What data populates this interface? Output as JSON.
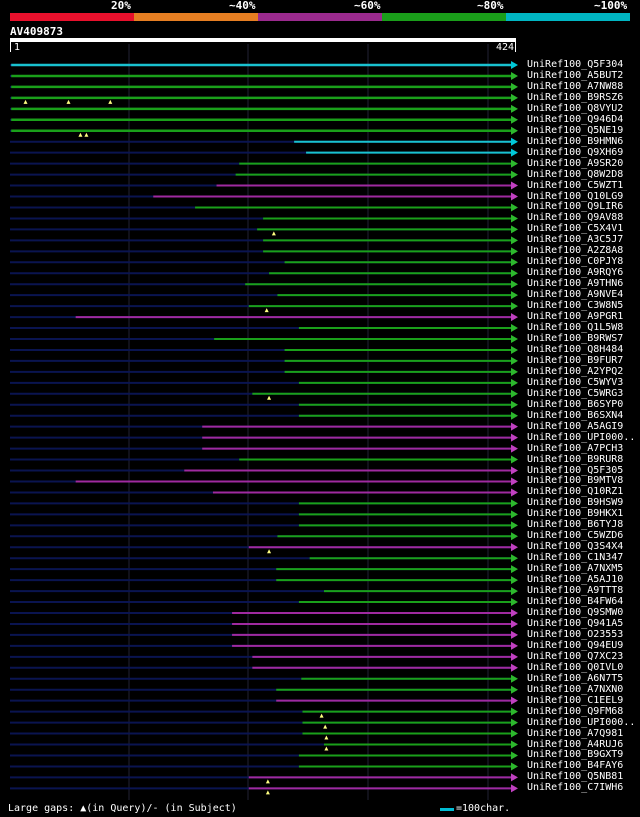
{
  "legend": {
    "labels": [
      "20%",
      "~40%",
      "~60%",
      "~80%",
      "~100%"
    ],
    "colors": [
      "#e8102c",
      "#e67e22",
      "#9b2a8e",
      "#1a9e1a",
      "#00b5c2"
    ]
  },
  "query": {
    "id": "AV409873",
    "start": "1",
    "end": "424"
  },
  "colors": {
    "gap": "#0a1450",
    "grid": "#222233",
    "arrow_green": "#2db82d",
    "arrow_cyan": "#00c8d8",
    "arrow_purple": "#c040c0",
    "marker": "#ffff80"
  },
  "hits": [
    {
      "label": "UniRef100_Q5F304",
      "color": "cyan",
      "start": 2,
      "bold": true,
      "markers": []
    },
    {
      "label": "UniRef100_A5BUT2",
      "color": "green",
      "start": 2,
      "bold": true,
      "markers": []
    },
    {
      "label": "UniRef100_A7NW88",
      "color": "green",
      "start": 2,
      "bold": true,
      "markers": []
    },
    {
      "label": "UniRef100_B9RSZ6",
      "color": "green",
      "start": 2,
      "bold": true,
      "markers": [
        14,
        50,
        85
      ]
    },
    {
      "label": "UniRef100_Q8VYU2",
      "color": "green",
      "start": 2,
      "bold": true,
      "markers": []
    },
    {
      "label": "UniRef100_Q946D4",
      "color": "green",
      "start": 2,
      "bold": true,
      "markers": []
    },
    {
      "label": "UniRef100_Q5NE19",
      "color": "green",
      "start": 2,
      "bold": true,
      "markers": [
        60,
        65
      ]
    },
    {
      "label": "UniRef100_B9HMN6",
      "color": "cyan",
      "start": 239,
      "bold": false,
      "markers": []
    },
    {
      "label": "UniRef100_Q9XH69",
      "color": "cyan",
      "start": 249,
      "bold": false,
      "markers": []
    },
    {
      "label": "UniRef100_A9SR20",
      "color": "green",
      "start": 193,
      "bold": false,
      "markers": []
    },
    {
      "label": "UniRef100_Q8W2D8",
      "color": "green",
      "start": 190,
      "bold": false,
      "markers": []
    },
    {
      "label": "UniRef100_C5WZT1",
      "color": "purple",
      "start": 174,
      "bold": false,
      "markers": []
    },
    {
      "label": "UniRef100_Q10LG9",
      "color": "purple",
      "start": 121,
      "bold": false,
      "markers": []
    },
    {
      "label": "UniRef100_Q9LIR6",
      "color": "green",
      "start": 156,
      "bold": false,
      "markers": []
    },
    {
      "label": "UniRef100_Q9AV88",
      "color": "green",
      "start": 213,
      "bold": false,
      "markers": []
    },
    {
      "label": "UniRef100_C5X4V1",
      "color": "green",
      "start": 208,
      "bold": false,
      "markers": [
        222
      ]
    },
    {
      "label": "UniRef100_A3C5J7",
      "color": "green",
      "start": 213,
      "bold": false,
      "markers": []
    },
    {
      "label": "UniRef100_A2Z8A8",
      "color": "green",
      "start": 213,
      "bold": false,
      "markers": []
    },
    {
      "label": "UniRef100_C0PJY8",
      "color": "green",
      "start": 231,
      "bold": false,
      "markers": []
    },
    {
      "label": "UniRef100_A9RQY6",
      "color": "green",
      "start": 218,
      "bold": false,
      "markers": []
    },
    {
      "label": "UniRef100_A9THN6",
      "color": "green",
      "start": 198,
      "bold": false,
      "markers": []
    },
    {
      "label": "UniRef100_A9NVE4",
      "color": "green",
      "start": 225,
      "bold": false,
      "markers": []
    },
    {
      "label": "UniRef100_C3W8N5",
      "color": "green",
      "start": 201,
      "bold": false,
      "markers": [
        216
      ]
    },
    {
      "label": "UniRef100_A9PGR1",
      "color": "purple",
      "start": 56,
      "bold": false,
      "markers": []
    },
    {
      "label": "UniRef100_Q1L5W8",
      "color": "green",
      "start": 243,
      "bold": false,
      "markers": []
    },
    {
      "label": "UniRef100_B9RWS7",
      "color": "green",
      "start": 172,
      "bold": false,
      "markers": []
    },
    {
      "label": "UniRef100_Q8H484",
      "color": "green",
      "start": 231,
      "bold": false,
      "markers": []
    },
    {
      "label": "UniRef100_B9FUR7",
      "color": "green",
      "start": 231,
      "bold": false,
      "markers": []
    },
    {
      "label": "UniRef100_A2YPQ2",
      "color": "green",
      "start": 231,
      "bold": false,
      "markers": []
    },
    {
      "label": "UniRef100_C5WYV3",
      "color": "green",
      "start": 243,
      "bold": false,
      "markers": []
    },
    {
      "label": "UniRef100_C5WRG3",
      "color": "green",
      "start": 204,
      "bold": false,
      "markers": [
        218
      ]
    },
    {
      "label": "UniRef100_B6SYP0",
      "color": "green",
      "start": 243,
      "bold": false,
      "markers": []
    },
    {
      "label": "UniRef100_B6SXN4",
      "color": "green",
      "start": 243,
      "bold": false,
      "markers": []
    },
    {
      "label": "UniRef100_A5AGI9",
      "color": "purple",
      "start": 162,
      "bold": false,
      "markers": []
    },
    {
      "label": "UniRef100_UPI000..",
      "color": "purple",
      "start": 162,
      "bold": false,
      "markers": []
    },
    {
      "label": "UniRef100_A7PCH3",
      "color": "purple",
      "start": 162,
      "bold": false,
      "markers": []
    },
    {
      "label": "UniRef100_B9RUR8",
      "color": "green",
      "start": 193,
      "bold": false,
      "markers": []
    },
    {
      "label": "UniRef100_Q5F305",
      "color": "purple",
      "start": 147,
      "bold": false,
      "markers": []
    },
    {
      "label": "UniRef100_B9MTV8",
      "color": "purple",
      "start": 56,
      "bold": false,
      "markers": []
    },
    {
      "label": "UniRef100_Q10RZ1",
      "color": "purple",
      "start": 171,
      "bold": false,
      "markers": []
    },
    {
      "label": "UniRef100_B9HSW9",
      "color": "green",
      "start": 243,
      "bold": false,
      "markers": []
    },
    {
      "label": "UniRef100_B9HKX1",
      "color": "green",
      "start": 243,
      "bold": false,
      "markers": []
    },
    {
      "label": "UniRef100_B6TYJ8",
      "color": "green",
      "start": 243,
      "bold": false,
      "markers": []
    },
    {
      "label": "UniRef100_C5WZD6",
      "color": "green",
      "start": 225,
      "bold": false,
      "markers": []
    },
    {
      "label": "UniRef100_Q3S4X4",
      "color": "purple",
      "start": 201,
      "bold": false,
      "markers": [
        218
      ]
    },
    {
      "label": "UniRef100_C1N347",
      "color": "green",
      "start": 252,
      "bold": false,
      "markers": []
    },
    {
      "label": "UniRef100_A7NXM5",
      "color": "green",
      "start": 224,
      "bold": false,
      "markers": []
    },
    {
      "label": "UniRef100_A5AJ10",
      "color": "green",
      "start": 224,
      "bold": false,
      "markers": []
    },
    {
      "label": "UniRef100_A9TTT8",
      "color": "green",
      "start": 264,
      "bold": false,
      "markers": []
    },
    {
      "label": "UniRef100_B4FW64",
      "color": "green",
      "start": 243,
      "bold": false,
      "markers": []
    },
    {
      "label": "UniRef100_Q9SMW0",
      "color": "purple",
      "start": 187,
      "bold": false,
      "markers": []
    },
    {
      "label": "UniRef100_Q941A5",
      "color": "purple",
      "start": 187,
      "bold": false,
      "markers": []
    },
    {
      "label": "UniRef100_O23553",
      "color": "purple",
      "start": 187,
      "bold": false,
      "markers": []
    },
    {
      "label": "UniRef100_Q94EU9",
      "color": "purple",
      "start": 187,
      "bold": false,
      "markers": []
    },
    {
      "label": "UniRef100_Q7XC23",
      "color": "purple",
      "start": 204,
      "bold": false,
      "markers": []
    },
    {
      "label": "UniRef100_Q0IVL0",
      "color": "purple",
      "start": 204,
      "bold": false,
      "markers": []
    },
    {
      "label": "UniRef100_A6N7T5",
      "color": "green",
      "start": 245,
      "bold": false,
      "markers": []
    },
    {
      "label": "UniRef100_A7NXN0",
      "color": "green",
      "start": 224,
      "bold": false,
      "markers": []
    },
    {
      "label": "UniRef100_C1EEL9",
      "color": "purple",
      "start": 224,
      "bold": false,
      "markers": []
    },
    {
      "label": "UniRef100_Q9FM68",
      "color": "green",
      "start": 246,
      "bold": false,
      "markers": [
        262
      ]
    },
    {
      "label": "UniRef100_UPI000..",
      "color": "green",
      "start": 246,
      "bold": false,
      "markers": [
        265
      ]
    },
    {
      "label": "UniRef100_A7Q981",
      "color": "green",
      "start": 246,
      "bold": false,
      "markers": [
        266
      ]
    },
    {
      "label": "UniRef100_A4RUJ6",
      "color": "green",
      "start": 264,
      "bold": false,
      "markers": [
        266
      ]
    },
    {
      "label": "UniRef100_B9GXT9",
      "color": "green",
      "start": 243,
      "bold": false,
      "markers": []
    },
    {
      "label": "UniRef100_B4FAY6",
      "color": "green",
      "start": 243,
      "bold": false,
      "markers": []
    },
    {
      "label": "UniRef100_Q5NB81",
      "color": "purple",
      "start": 201,
      "bold": false,
      "markers": [
        217
      ]
    },
    {
      "label": "UniRef100_C7IWH6",
      "color": "purple",
      "start": 201,
      "bold": false,
      "markers": [
        217
      ]
    }
  ],
  "footer": {
    "gaps_text": "Large gaps: ▲(in Query)/- (in Subject)",
    "scale_text": "=100char."
  }
}
